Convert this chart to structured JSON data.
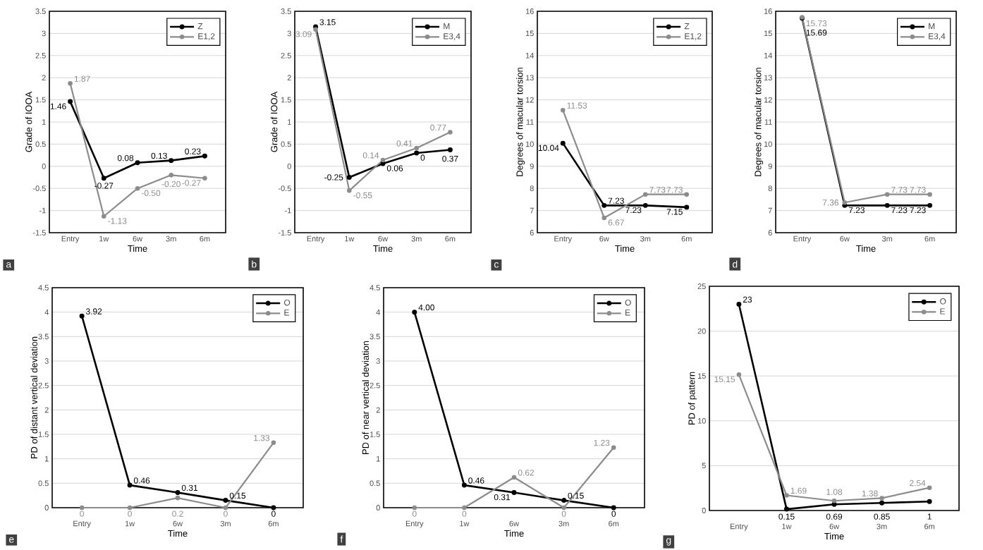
{
  "chart_data": [
    {
      "type": "line",
      "xlabel": "Time",
      "ylabel": "Grade of IOOA",
      "categories": [
        "Entry",
        "1w",
        "6w",
        "3m",
        "6m"
      ],
      "ylim": [
        -1.5,
        3.5
      ],
      "yticks": [
        -1.5,
        -1,
        -0.5,
        0,
        0.5,
        1,
        1.5,
        2,
        2.5,
        3,
        3.5
      ],
      "grid": "y",
      "legend": "top right",
      "marker": "circle",
      "annotations": [
        "a"
      ],
      "series": [
        {
          "name": "Z",
          "color": "#000000",
          "values": [
            1.46,
            -0.27,
            0.08,
            0.13,
            0.23
          ],
          "value_labels": [
            "1.46",
            "-0.27",
            "0.08",
            "0.13",
            "0.23"
          ]
        },
        {
          "name": "E1,2",
          "color": "#8c8c8c",
          "values": [
            1.87,
            -1.13,
            -0.5,
            -0.2,
            -0.27
          ],
          "value_labels": [
            "1.87",
            "-1.13",
            "-0.50",
            "-0.20",
            "-0.27"
          ]
        }
      ]
    },
    {
      "type": "line",
      "xlabel": "Time",
      "ylabel": "Grade of IOOA",
      "categories": [
        "Entry",
        "1w",
        "6w",
        "3m",
        "6m"
      ],
      "ylim": [
        -1.5,
        3.5
      ],
      "yticks": [
        -1.5,
        -1,
        -0.5,
        0,
        0.5,
        1,
        1.5,
        2,
        2.5,
        3,
        3.5
      ],
      "grid": "y",
      "legend": "top right",
      "marker": "circle",
      "annotations": [
        "b"
      ],
      "series": [
        {
          "name": "M",
          "color": "#000000",
          "values": [
            3.15,
            -0.25,
            0.06,
            0.3,
            0.37
          ],
          "value_labels": [
            "3.15",
            "-0.25",
            "0.06",
            "0",
            "0.37"
          ]
        },
        {
          "name": "E3,4",
          "color": "#8c8c8c",
          "values": [
            3.09,
            -0.55,
            0.14,
            0.41,
            0.77
          ],
          "value_labels": [
            "3.09",
            "-0.55",
            "0.14",
            "0.41",
            "0.77"
          ]
        }
      ]
    },
    {
      "type": "line",
      "xlabel": "Time",
      "ylabel": "Degrees of macular torsion",
      "categories": [
        "Entry",
        "6w",
        "3m",
        "6m"
      ],
      "ylim": [
        6,
        16
      ],
      "yticks": [
        6,
        7,
        8,
        9,
        10,
        11,
        12,
        13,
        14,
        15,
        16
      ],
      "grid": "y",
      "legend": "top right",
      "marker": "circle",
      "annotations": [
        "c"
      ],
      "series": [
        {
          "name": "Z",
          "color": "#000000",
          "values": [
            10.04,
            7.23,
            7.23,
            7.15
          ],
          "value_labels": [
            "10.04",
            "7.23",
            "7.23",
            "7.15"
          ]
        },
        {
          "name": "E1,2",
          "color": "#8c8c8c",
          "values": [
            11.53,
            6.67,
            7.73,
            7.73
          ],
          "value_labels": [
            "11.53",
            "6.67",
            "7.73",
            "7.73"
          ]
        }
      ]
    },
    {
      "type": "line",
      "xlabel": "Time",
      "ylabel": "Degrees of macular torsion",
      "categories": [
        "Entry",
        "6w",
        "3m",
        "6m"
      ],
      "ylim": [
        6,
        16
      ],
      "yticks": [
        6,
        7,
        8,
        9,
        10,
        11,
        12,
        13,
        14,
        15,
        16
      ],
      "grid": "y",
      "legend": "top right",
      "marker": "circle",
      "annotations": [
        "d"
      ],
      "series": [
        {
          "name": "M",
          "color": "#000000",
          "values": [
            15.69,
            7.23,
            7.23,
            7.23
          ],
          "value_labels": [
            "15.69",
            "7.23",
            "7.23",
            "7.23"
          ]
        },
        {
          "name": "E3,4",
          "color": "#8c8c8c",
          "values": [
            15.73,
            7.36,
            7.73,
            7.73
          ],
          "value_labels": [
            "15.73",
            "7.36",
            "7.73",
            "7.73"
          ]
        }
      ]
    },
    {
      "type": "line",
      "xlabel": "Time",
      "ylabel": "PD of distant vertical deviation",
      "categories": [
        "Entry",
        "1w",
        "6w",
        "3m",
        "6m"
      ],
      "ylim": [
        0,
        4.5
      ],
      "yticks": [
        0,
        0.5,
        1,
        1.5,
        2,
        2.5,
        3,
        3.5,
        4,
        4.5
      ],
      "grid": "y",
      "legend": "top right",
      "marker": "circle",
      "annotations": [
        "e"
      ],
      "series": [
        {
          "name": "O",
          "color": "#000000",
          "values": [
            3.92,
            0.46,
            0.31,
            0.15,
            0
          ],
          "value_labels": [
            "3.92",
            "0.46",
            "0.31",
            "0.15",
            "0"
          ]
        },
        {
          "name": "E",
          "color": "#8c8c8c",
          "values": [
            0,
            0,
            0.2,
            0,
            1.33
          ],
          "value_labels": [
            "0",
            "0",
            "0.2",
            "0",
            "1.33"
          ]
        }
      ]
    },
    {
      "type": "line",
      "xlabel": "Time",
      "ylabel": "PD of near vertical deviation",
      "categories": [
        "Entry",
        "1w",
        "6w",
        "3m",
        "6m"
      ],
      "ylim": [
        0,
        4.5
      ],
      "yticks": [
        0,
        0.5,
        1,
        1.5,
        2,
        2.5,
        3,
        3.5,
        4,
        4.5
      ],
      "grid": "y",
      "legend": "top right",
      "marker": "circle",
      "annotations": [
        "f"
      ],
      "series": [
        {
          "name": "O",
          "color": "#000000",
          "values": [
            4.0,
            0.46,
            0.31,
            0.15,
            0
          ],
          "value_labels": [
            "4.00",
            "0.46",
            "0.31",
            "0.15",
            "0"
          ]
        },
        {
          "name": "E",
          "color": "#8c8c8c",
          "values": [
            0,
            0,
            0.62,
            0,
            1.23
          ],
          "value_labels": [
            "0",
            "0",
            "0.62",
            "0",
            "1.23"
          ]
        }
      ]
    },
    {
      "type": "line",
      "xlabel": "Time",
      "ylabel": "PD of pattern",
      "categories": [
        "Entry",
        "1w",
        "6w",
        "3m",
        "6m"
      ],
      "ylim": [
        0,
        25
      ],
      "yticks": [
        0,
        5,
        10,
        15,
        20,
        25
      ],
      "grid": "y",
      "legend": "top right",
      "marker": "circle",
      "annotations": [
        "g"
      ],
      "series": [
        {
          "name": "O",
          "color": "#000000",
          "values": [
            23,
            0.15,
            0.69,
            0.85,
            1
          ],
          "value_labels": [
            "23",
            "0.15",
            "0.69",
            "0.85",
            "1"
          ]
        },
        {
          "name": "E",
          "color": "#8c8c8c",
          "values": [
            15.15,
            1.69,
            1.08,
            1.38,
            2.54
          ],
          "value_labels": [
            "15.15",
            "1.69",
            "1.08",
            "1.38",
            "2.54"
          ]
        }
      ]
    }
  ]
}
